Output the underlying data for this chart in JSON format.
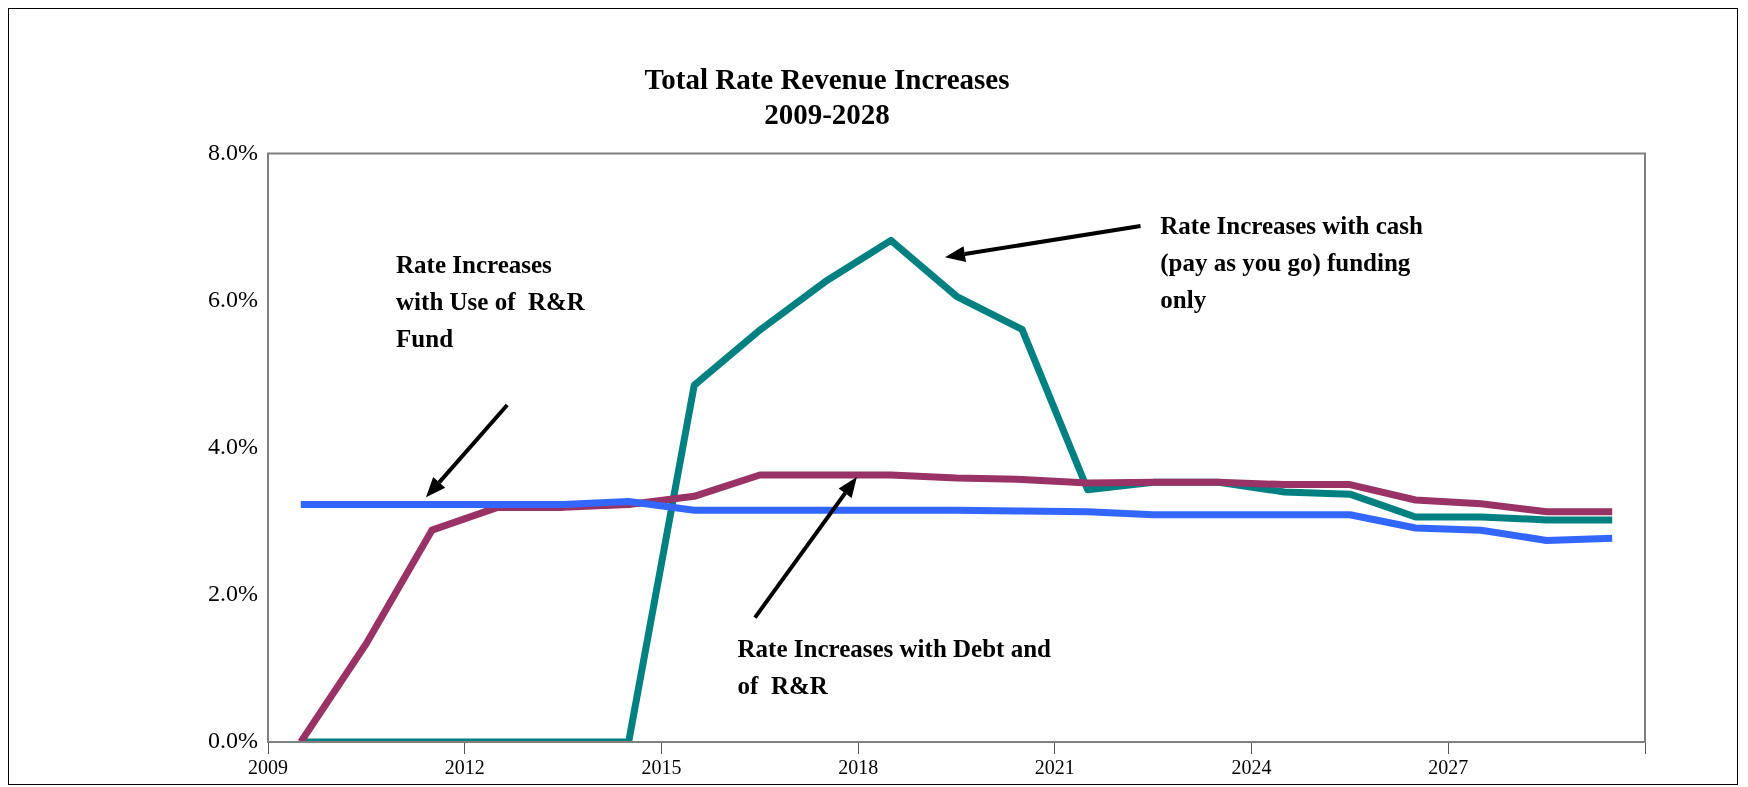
{
  "chart_data": {
    "type": "line",
    "title": "Total Rate Revenue Increases\n2009-2028",
    "x": [
      2009.5,
      2010.5,
      2011.5,
      2012.5,
      2013.5,
      2014.5,
      2015.5,
      2016.5,
      2017.5,
      2018.5,
      2019.5,
      2020.5,
      2021.5,
      2022.5,
      2023.5,
      2024.5,
      2025.5,
      2026.5,
      2027.5,
      2028.5,
      2029.5
    ],
    "series": [
      {
        "color": "#3366ff",
        "values": [
          3.23,
          3.23,
          3.23,
          3.23,
          3.23,
          3.27,
          3.15,
          3.15,
          3.15,
          3.15,
          3.15,
          3.14,
          3.13,
          3.09,
          3.09,
          3.09,
          3.09,
          2.91,
          2.88,
          2.74,
          2.77
        ]
      },
      {
        "color": "#993366",
        "values": [
          0,
          1.34,
          2.88,
          3.19,
          3.19,
          3.23,
          3.34,
          3.63,
          3.63,
          3.63,
          3.59,
          3.57,
          3.52,
          3.53,
          3.53,
          3.5,
          3.5,
          3.29,
          3.24,
          3.13,
          3.13
        ]
      },
      {
        "color": "#008080",
        "values": [
          0,
          0,
          0,
          0,
          0,
          0,
          4.85,
          5.6,
          6.26,
          6.82,
          6.06,
          5.61,
          3.43,
          3.53,
          3.53,
          3.4,
          3.37,
          3.06,
          3.06,
          3.02,
          3.02
        ]
      }
    ],
    "xlim": [
      2009,
      2030
    ],
    "xticks": [
      2009,
      2012,
      2015,
      2018,
      2021,
      2024,
      2027,
      {
        "value": 2030,
        "label": null
      }
    ],
    "ylim": [
      0,
      8
    ],
    "yticks": [
      {
        "value": 0,
        "label": "0.0%"
      },
      {
        "value": 2,
        "label": "2.0%"
      },
      {
        "value": 4,
        "label": "4.0%"
      },
      {
        "value": 6,
        "label": "6.0%"
      },
      {
        "value": 8,
        "label": "8.0%"
      }
    ],
    "marker": "none",
    "line_style": "solid",
    "annotations": [
      "Rate Increases\nwith Use of  R&R\nFund",
      "Rate Increases with cash\n(pay as you go) funding\nonly",
      "Rate Increases with Debt and\nof  R&R"
    ]
  }
}
